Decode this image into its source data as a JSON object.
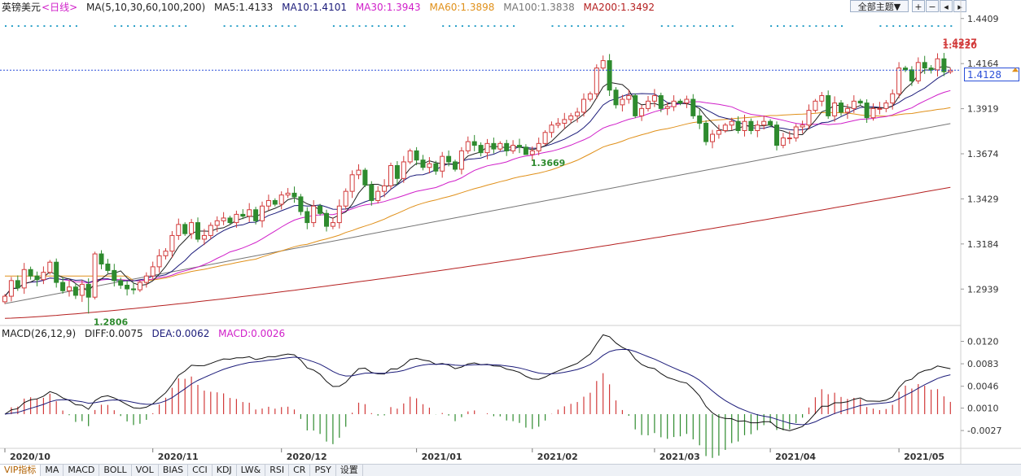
{
  "header": {
    "instrument": "英镑美元",
    "period": "<日线>",
    "ma_params": "MA(5,10,30,60,100,200)",
    "ma5": "MA5:1.4133",
    "ma10": "MA10:1.4101",
    "ma30": "MA30:1.3943",
    "ma60": "MA60:1.3898",
    "ma100": "MA100:1.3838",
    "ma200": "MA200:1.3492"
  },
  "controls": {
    "theme": "全部主题▼",
    "zoom_in": "+",
    "zoom_out": "−",
    "prev": "◂",
    "next": "▸"
  },
  "colors": {
    "up": "#d23b3b",
    "down": "#2e8b2e",
    "ma5": "#222222",
    "ma10": "#1c1c7a",
    "ma30": "#d01fc9",
    "ma60": "#e0901a",
    "ma100": "#777777",
    "ma200": "#b52020",
    "dea": "#1c1c7a",
    "current_price": "#2a4fd8"
  },
  "current_price": "1.4128",
  "macd_header": {
    "params": "MACD(26,12,9)",
    "diff": "DIFF:0.0075",
    "dea": "DEA:0.0062",
    "macd": "MACD:0.0026"
  },
  "tabs": [
    "VIP指标",
    "MA",
    "MACD",
    "BOLL",
    "VOL",
    "BIAS",
    "CCI",
    "KDJ",
    "LW&",
    "RSI",
    "CR",
    "PSY",
    "设置"
  ],
  "chart_data": [
    {
      "type": "candlestick",
      "title": "英镑美元",
      "x": [
        "2020/10",
        "2020/11",
        "2020/12",
        "2021/01",
        "2021/02",
        "2021/03",
        "2021/04",
        "2021/05"
      ],
      "y_ticks": [
        "1.4409",
        "1.4164",
        "1.3919",
        "1.3674",
        "1.3429",
        "1.3184",
        "1.2939"
      ],
      "ylim": [
        1.275,
        1.443
      ],
      "annotations": [
        {
          "label": "1.4237",
          "value": 1.4237,
          "date": "2021/02/24"
        },
        {
          "label": "1.4220",
          "value": 1.422,
          "date": "2021/05/14"
        },
        {
          "label": "1.3669",
          "value": 1.3669,
          "date": "2021/04/12"
        },
        {
          "label": "1.2806",
          "value": 1.2806,
          "date": "2020/09/30"
        }
      ],
      "moving_averages": {
        "ma5": 1.4133,
        "ma10": 1.4101,
        "ma30": 1.3943,
        "ma60": 1.3898,
        "ma100": 1.3838,
        "ma200": 1.3492
      },
      "closes": [
        1.29,
        1.2985,
        1.2945,
        1.3045,
        1.301,
        1.299,
        1.303,
        1.3085,
        1.2975,
        1.293,
        1.295,
        1.2905,
        1.2965,
        1.2895,
        1.313,
        1.3075,
        1.304,
        1.2985,
        1.296,
        1.294,
        1.2935,
        1.2975,
        1.301,
        1.306,
        1.312,
        1.3145,
        1.323,
        1.329,
        1.324,
        1.33,
        1.321,
        1.323,
        1.3285,
        1.331,
        1.3325,
        1.33,
        1.3345,
        1.3335,
        1.337,
        1.331,
        1.339,
        1.342,
        1.34,
        1.345,
        1.346,
        1.344,
        1.336,
        1.33,
        1.339,
        1.335,
        1.328,
        1.33,
        1.339,
        1.347,
        1.356,
        1.3585,
        1.3505,
        1.342,
        1.347,
        1.35,
        1.361,
        1.354,
        1.363,
        1.369,
        1.364,
        1.36,
        1.362,
        1.358,
        1.366,
        1.363,
        1.359,
        1.369,
        1.374,
        1.372,
        1.368,
        1.373,
        1.37,
        1.373,
        1.369,
        1.372,
        1.371,
        1.367,
        1.369,
        1.373,
        1.379,
        1.383,
        1.384,
        1.386,
        1.388,
        1.39,
        1.397,
        1.4,
        1.414,
        1.418,
        1.402,
        1.394,
        1.397,
        1.399,
        1.388,
        1.392,
        1.396,
        1.399,
        1.392,
        1.393,
        1.396,
        1.395,
        1.397,
        1.388,
        1.384,
        1.374,
        1.378,
        1.38,
        1.383,
        1.385,
        1.38,
        1.385,
        1.38,
        1.383,
        1.385,
        1.383,
        1.372,
        1.376,
        1.376,
        1.382,
        1.383,
        1.391,
        1.396,
        1.399,
        1.388,
        1.395,
        1.39,
        1.392,
        1.396,
        1.395,
        1.387,
        1.392,
        1.392,
        1.395,
        1.4,
        1.414,
        1.413,
        1.407,
        1.417,
        1.414,
        1.413,
        1.419,
        1.412,
        1.4128
      ]
    },
    {
      "type": "macd",
      "title": "MACD(26,12,9)",
      "y_ticks": [
        "0.0120",
        "0.0083",
        "0.0046",
        "0.0010",
        "-0.0027"
      ],
      "ylim": [
        -0.0055,
        0.0122
      ],
      "diff": 0.0075,
      "dea": 0.0062,
      "macd": 0.0026
    }
  ]
}
